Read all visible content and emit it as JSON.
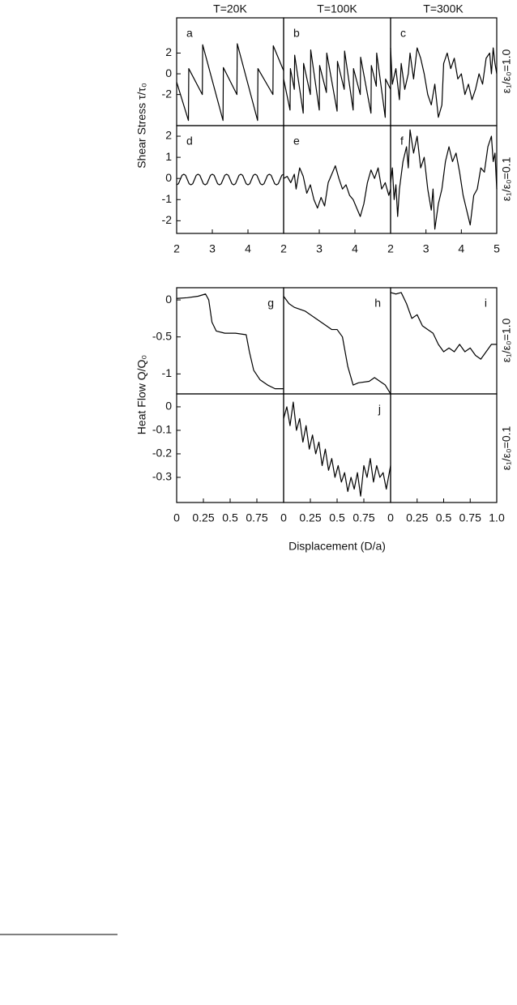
{
  "figure": {
    "column_titles": [
      "T=20K",
      "T=100K",
      "T=300K"
    ],
    "top_y_label": "Shear Stress τ/τ₀",
    "bottom_y_label": "Heat Flow Q/Q₀",
    "top_row_labels": [
      "ε₁/ε₀=1.0",
      "ε₁/ε₀=0.1"
    ],
    "bottom_row_labels": [
      "ε₁/ε₀=1.0",
      "ε₁/ε₀=0.1"
    ],
    "x_label": "Displacement (D/a)"
  },
  "chart_data": [
    {
      "type": "line",
      "label": "a",
      "xlim": [
        2,
        5
      ],
      "ylim": [
        -5,
        5.4
      ],
      "yticks": [
        -2,
        0,
        2
      ],
      "x": [
        2.0,
        2.33,
        2.34,
        2.72,
        2.73,
        3.3,
        3.31,
        3.69,
        3.7,
        4.27,
        4.28,
        4.7,
        4.71,
        5.0
      ],
      "series": [
        {
          "color": "#000000",
          "values": [
            -0.8,
            -4.5,
            0.5,
            -2.0,
            2.8,
            -4.5,
            0.6,
            -2.0,
            2.9,
            -4.5,
            0.5,
            -2.0,
            2.7,
            0.3
          ]
        }
      ]
    },
    {
      "type": "line",
      "label": "b",
      "xlim": [
        2,
        5
      ],
      "ylim": [
        -5,
        5.4
      ],
      "x": [
        2.0,
        2.18,
        2.19,
        2.3,
        2.31,
        2.55,
        2.56,
        2.75,
        2.76,
        3.0,
        3.01,
        3.2,
        3.21,
        3.5,
        3.51,
        3.7,
        3.71,
        3.95,
        3.96,
        4.15,
        4.16,
        4.45,
        4.46,
        4.6,
        4.61,
        4.85,
        4.86,
        5.0
      ],
      "series": [
        {
          "color": "#000000",
          "values": [
            -0.5,
            -3.5,
            0.5,
            -1.5,
            1.8,
            -3.8,
            1.0,
            -2,
            2.3,
            -3.5,
            0.8,
            -1.8,
            2.0,
            -3.6,
            1.2,
            -1.5,
            2.2,
            -3.5,
            0.5,
            -2,
            1.6,
            -3.8,
            0.8,
            -1.2,
            2.0,
            -4.2,
            -0.5,
            -1.5
          ]
        }
      ]
    },
    {
      "type": "line",
      "label": "c",
      "xlim": [
        2,
        5
      ],
      "ylim": [
        -5,
        5.4
      ],
      "x": [
        2,
        2.05,
        2.15,
        2.25,
        2.3,
        2.4,
        2.5,
        2.55,
        2.65,
        2.75,
        2.85,
        2.95,
        3.05,
        3.15,
        3.25,
        3.35,
        3.45,
        3.5,
        3.6,
        3.7,
        3.8,
        3.9,
        4.0,
        4.1,
        4.2,
        4.3,
        4.4,
        4.5,
        4.6,
        4.7,
        4.8,
        4.85,
        4.9,
        4.95,
        5
      ],
      "series": [
        {
          "color": "#000000",
          "values": [
            2.5,
            -1,
            0.5,
            -2.5,
            1,
            -1.5,
            0,
            2,
            -0.5,
            2.5,
            1.5,
            0,
            -2,
            -3,
            -1,
            -4.2,
            -3,
            1,
            2,
            0.5,
            1.5,
            -0.5,
            0,
            -2,
            -1,
            -2.5,
            -1.5,
            0,
            -1,
            1.5,
            2,
            0,
            2.5,
            1,
            0
          ]
        }
      ]
    },
    {
      "type": "line",
      "label": "d",
      "xlim": [
        2,
        5
      ],
      "ylim": [
        -2.6,
        2.5
      ],
      "yticks": [
        -2,
        -1,
        0,
        1,
        2
      ],
      "xticks": [
        2,
        3,
        4
      ],
      "x": [
        2,
        2.05,
        2.1,
        2.15,
        2.2,
        2.25,
        2.3,
        2.35,
        2.4,
        2.45,
        2.5,
        2.55,
        2.6,
        2.65,
        2.7,
        2.75,
        2.8,
        2.85,
        2.9,
        2.95,
        3,
        3.05,
        3.1,
        3.15,
        3.2,
        3.25,
        3.3,
        3.35,
        3.4,
        3.45,
        3.5,
        3.55,
        3.6,
        3.65,
        3.7,
        3.75,
        3.8,
        3.85,
        3.9,
        3.95,
        4,
        4.05,
        4.1,
        4.15,
        4.2,
        4.25,
        4.3,
        4.35,
        4.4,
        4.45,
        4.5,
        4.55,
        4.6,
        4.65,
        4.7,
        4.75,
        4.8,
        4.85,
        4.9,
        4.95,
        5
      ],
      "series": [
        {
          "color": "#000000",
          "values": [
            -0.3,
            -0.25,
            -0.05,
            0.15,
            0.2,
            0.15,
            -0.05,
            -0.25,
            -0.3,
            -0.25,
            -0.05,
            0.15,
            0.2,
            0.15,
            -0.05,
            -0.25,
            -0.3,
            -0.25,
            -0.05,
            0.15,
            0.2,
            0.15,
            -0.05,
            -0.25,
            -0.3,
            -0.25,
            -0.05,
            0.15,
            0.2,
            0.15,
            -0.05,
            -0.25,
            -0.3,
            -0.25,
            -0.05,
            0.15,
            0.2,
            0.15,
            -0.05,
            -0.25,
            -0.3,
            -0.25,
            -0.05,
            0.15,
            0.2,
            0.15,
            -0.05,
            -0.25,
            -0.3,
            -0.25,
            -0.05,
            0.15,
            0.2,
            0.15,
            -0.05,
            -0.25,
            -0.3,
            -0.25,
            -0.05,
            0.15,
            0.2
          ]
        }
      ]
    },
    {
      "type": "line",
      "label": "e",
      "xlim": [
        2,
        5
      ],
      "ylim": [
        -2.6,
        2.5
      ],
      "xticks": [
        2,
        3,
        4
      ],
      "x": [
        2,
        2.1,
        2.2,
        2.3,
        2.35,
        2.45,
        2.55,
        2.65,
        2.75,
        2.85,
        2.95,
        3.05,
        3.15,
        3.25,
        3.35,
        3.45,
        3.55,
        3.65,
        3.75,
        3.85,
        3.95,
        4.05,
        4.15,
        4.25,
        4.35,
        4.45,
        4.55,
        4.65,
        4.75,
        4.85,
        4.95,
        5
      ],
      "series": [
        {
          "color": "#000000",
          "values": [
            0,
            0.1,
            -0.2,
            0.2,
            -0.5,
            0.5,
            0.1,
            -0.7,
            -0.3,
            -1.0,
            -1.4,
            -0.9,
            -1.3,
            -0.2,
            0.2,
            0.6,
            0,
            -0.5,
            -0.3,
            -0.8,
            -1.0,
            -1.4,
            -1.8,
            -1.2,
            -0.2,
            0.4,
            0,
            0.5,
            -0.5,
            -0.2,
            -0.8,
            -0.5
          ]
        }
      ]
    },
    {
      "type": "line",
      "label": "f",
      "xlim": [
        2,
        5
      ],
      "ylim": [
        -2.6,
        2.5
      ],
      "xticks": [
        2,
        3,
        4,
        5
      ],
      "x": [
        2,
        2.05,
        2.1,
        2.15,
        2.2,
        2.25,
        2.35,
        2.45,
        2.5,
        2.55,
        2.65,
        2.75,
        2.85,
        2.95,
        3.05,
        3.15,
        3.2,
        3.25,
        3.35,
        3.45,
        3.55,
        3.65,
        3.75,
        3.85,
        3.95,
        4.05,
        4.15,
        4.25,
        4.35,
        4.45,
        4.55,
        4.65,
        4.75,
        4.85,
        4.9,
        4.95,
        5
      ],
      "series": [
        {
          "color": "#000000",
          "values": [
            -0.2,
            0.5,
            -1.0,
            -0.3,
            -1.8,
            -0.5,
            0.8,
            1.5,
            0.5,
            2.3,
            1.2,
            2,
            0.5,
            1.0,
            -0.5,
            -1.5,
            -0.5,
            -2.4,
            -1.2,
            -0.5,
            0.8,
            1.5,
            0.8,
            1.2,
            0.3,
            -0.8,
            -1.5,
            -2.2,
            -0.8,
            -0.5,
            0.5,
            0.3,
            1.5,
            2.0,
            0.8,
            1.2,
            -0.5
          ]
        }
      ]
    },
    {
      "type": "line",
      "label": "g",
      "xlim": [
        0,
        1
      ],
      "ylim": [
        -1.27,
        0.165
      ],
      "yticks": [
        -1,
        -0.5,
        0
      ],
      "x": [
        0,
        0.1,
        0.2,
        0.27,
        0.3,
        0.33,
        0.37,
        0.45,
        0.55,
        0.65,
        0.68,
        0.72,
        0.78,
        0.85,
        0.92,
        1
      ],
      "series": [
        {
          "color": "#000000",
          "values": [
            0.02,
            0.03,
            0.05,
            0.08,
            0,
            -0.3,
            -0.42,
            -0.45,
            -0.45,
            -0.47,
            -0.7,
            -0.95,
            -1.08,
            -1.15,
            -1.2,
            -1.2
          ]
        }
      ]
    },
    {
      "type": "line",
      "label": "h",
      "xlim": [
        0,
        1
      ],
      "ylim": [
        -1.27,
        0.165
      ],
      "x": [
        0,
        0.05,
        0.1,
        0.2,
        0.3,
        0.4,
        0.45,
        0.5,
        0.55,
        0.6,
        0.65,
        0.7,
        0.8,
        0.85,
        0.9,
        0.95,
        1
      ],
      "series": [
        {
          "color": "#000000",
          "values": [
            0.05,
            -0.05,
            -0.1,
            -0.15,
            -0.25,
            -0.35,
            -0.4,
            -0.4,
            -0.5,
            -0.9,
            -1.15,
            -1.12,
            -1.1,
            -1.05,
            -1.1,
            -1.15,
            -1.27
          ]
        }
      ]
    },
    {
      "type": "line",
      "label": "i",
      "xlim": [
        0,
        1
      ],
      "ylim": [
        -1.27,
        0.165
      ],
      "x": [
        0,
        0.05,
        0.1,
        0.15,
        0.2,
        0.25,
        0.3,
        0.35,
        0.4,
        0.45,
        0.5,
        0.55,
        0.6,
        0.65,
        0.7,
        0.75,
        0.8,
        0.85,
        0.9,
        0.95,
        1
      ],
      "series": [
        {
          "color": "#000000",
          "values": [
            0.1,
            0.08,
            0.1,
            -0.05,
            -0.25,
            -0.2,
            -0.35,
            -0.4,
            -0.45,
            -0.6,
            -0.7,
            -0.65,
            -0.7,
            -0.6,
            -0.7,
            -0.65,
            -0.75,
            -0.8,
            -0.7,
            -0.6,
            -0.6
          ]
        }
      ]
    },
    {
      "type": "line",
      "xlim": [
        0,
        1
      ],
      "ylim": [
        -0.407,
        0.055
      ],
      "yticks": [
        -0.3,
        -0.2,
        -0.1,
        0
      ],
      "xticks": [
        0,
        0.25,
        0.5,
        0.75
      ]
    },
    {
      "type": "line",
      "label": "j",
      "xlim": [
        0,
        1
      ],
      "ylim": [
        -0.407,
        0.055
      ],
      "xticks": [
        0,
        0.25,
        0.5,
        0.75
      ],
      "x": [
        0,
        0.03,
        0.06,
        0.09,
        0.12,
        0.15,
        0.18,
        0.21,
        0.24,
        0.27,
        0.3,
        0.33,
        0.36,
        0.39,
        0.42,
        0.45,
        0.48,
        0.51,
        0.54,
        0.57,
        0.6,
        0.63,
        0.66,
        0.69,
        0.72,
        0.75,
        0.78,
        0.81,
        0.84,
        0.87,
        0.9,
        0.93,
        0.96,
        1
      ],
      "series": [
        {
          "color": "#000000",
          "values": [
            -0.05,
            0,
            -0.08,
            0.02,
            -0.1,
            -0.05,
            -0.15,
            -0.08,
            -0.18,
            -0.12,
            -0.2,
            -0.15,
            -0.25,
            -0.18,
            -0.27,
            -0.22,
            -0.3,
            -0.25,
            -0.32,
            -0.28,
            -0.36,
            -0.3,
            -0.35,
            -0.28,
            -0.38,
            -0.25,
            -0.3,
            -0.22,
            -0.32,
            -0.25,
            -0.3,
            -0.28,
            -0.35,
            -0.25
          ]
        }
      ]
    },
    {
      "type": "line",
      "xlim": [
        0,
        1
      ],
      "ylim": [
        -0.407,
        0.055
      ],
      "xticks": [
        0,
        0.25,
        0.5,
        0.75,
        {
          "value": 1,
          "label": "1.0"
        }
      ]
    }
  ]
}
